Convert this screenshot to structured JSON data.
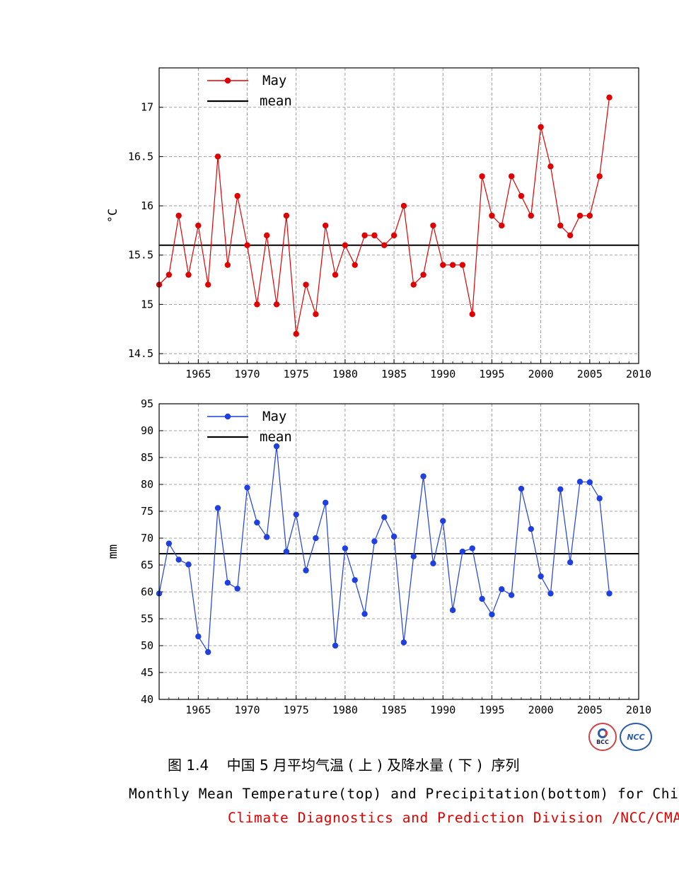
{
  "chart_data": [
    {
      "type": "line",
      "ylabel": "°C",
      "xlim": [
        1961,
        2010
      ],
      "ylim": [
        14.4,
        17.4
      ],
      "xticks": [
        1965,
        1970,
        1975,
        1980,
        1985,
        1990,
        1995,
        2000,
        2005,
        2010
      ],
      "yticks": [
        14.5,
        15,
        15.5,
        16,
        16.5,
        17
      ],
      "grid": true,
      "legend_position": "top-left",
      "mean": 15.6,
      "mean_color": "#000000",
      "series": [
        {
          "name": "May",
          "color": "#e00000",
          "x": [
            1961,
            1962,
            1963,
            1964,
            1965,
            1966,
            1967,
            1968,
            1969,
            1970,
            1971,
            1972,
            1973,
            1974,
            1975,
            1976,
            1977,
            1978,
            1979,
            1980,
            1981,
            1982,
            1983,
            1984,
            1985,
            1986,
            1987,
            1988,
            1989,
            1990,
            1991,
            1992,
            1993,
            1994,
            1995,
            1996,
            1997,
            1998,
            1999,
            2000,
            2001,
            2002,
            2003,
            2004,
            2005,
            2006,
            2007
          ],
          "values": [
            15.2,
            15.3,
            15.9,
            15.3,
            15.8,
            15.2,
            16.5,
            15.4,
            16.1,
            15.6,
            15.0,
            15.7,
            15.0,
            15.9,
            14.7,
            15.2,
            14.9,
            15.8,
            15.3,
            15.6,
            15.4,
            15.7,
            15.7,
            15.6,
            15.7,
            16.0,
            15.2,
            15.3,
            15.8,
            15.4,
            15.4,
            15.4,
            14.9,
            16.3,
            15.9,
            15.8,
            16.3,
            16.1,
            15.9,
            16.8,
            16.4,
            15.8,
            15.7,
            15.9,
            15.9,
            16.3,
            17.1
          ]
        }
      ],
      "legend": {
        "series_label": "May",
        "mean_label": "mean"
      }
    },
    {
      "type": "line",
      "ylabel": "mm",
      "xlim": [
        1961,
        2010
      ],
      "ylim": [
        40,
        95
      ],
      "xticks": [
        1965,
        1970,
        1975,
        1980,
        1985,
        1990,
        1995,
        2000,
        2005,
        2010
      ],
      "yticks": [
        40,
        45,
        50,
        55,
        60,
        65,
        70,
        75,
        80,
        85,
        90,
        95
      ],
      "grid": true,
      "legend_position": "top-left",
      "mean": 67.1,
      "mean_color": "#000000",
      "series": [
        {
          "name": "May",
          "color": "#1f3fe0",
          "x": [
            1961,
            1962,
            1963,
            1964,
            1965,
            1966,
            1967,
            1968,
            1969,
            1970,
            1971,
            1972,
            1973,
            1974,
            1975,
            1976,
            1977,
            1978,
            1979,
            1980,
            1981,
            1982,
            1983,
            1984,
            1985,
            1986,
            1987,
            1988,
            1989,
            1990,
            1991,
            1992,
            1993,
            1994,
            1995,
            1996,
            1997,
            1998,
            1999,
            2000,
            2001,
            2002,
            2003,
            2004,
            2005,
            2006,
            2007
          ],
          "values": [
            59.7,
            69.0,
            66.0,
            65.1,
            51.7,
            48.8,
            75.6,
            61.7,
            60.6,
            79.4,
            72.9,
            70.2,
            87.1,
            67.5,
            74.4,
            64.0,
            70.0,
            76.6,
            50.0,
            68.1,
            62.2,
            55.9,
            69.4,
            73.9,
            70.3,
            50.6,
            66.6,
            81.5,
            65.3,
            73.2,
            56.6,
            67.5,
            68.1,
            58.7,
            55.8,
            60.5,
            59.4,
            79.2,
            71.7,
            62.9,
            59.7,
            79.1,
            65.5,
            80.5,
            80.4,
            77.4,
            59.7
          ]
        }
      ],
      "legend": {
        "series_label": "May",
        "mean_label": "mean"
      }
    }
  ],
  "caption": {
    "chinese": "图 1.4    中国 5 月平均气温 ( 上 ) 及降水量 ( 下 )  序列",
    "english": "Monthly Mean Temperature(top) and Precipitation(bottom) for China",
    "organization": "Climate Diagnostics and Prediction Division /NCC/CMA",
    "organization_color": "#e00000"
  },
  "logos": {
    "left": "BCC",
    "right": "NCC"
  }
}
